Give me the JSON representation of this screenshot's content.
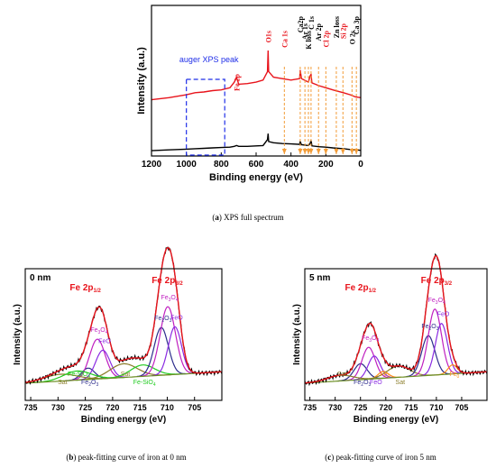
{
  "figure": {
    "caption_a": {
      "letter": "a",
      "text": " XPS full spectrum"
    },
    "caption_b": {
      "letter": "b",
      "text": " peak-fitting curve of iron at 0 nm"
    },
    "caption_c": {
      "letter": "c",
      "text": " peak-fitting curve of iron 5 nm"
    }
  },
  "chart_data": [
    {
      "type": "line",
      "xlabel": "Binding energy (eV)",
      "ylabel": "Intensity (a.u.)",
      "xlim": [
        1200,
        0
      ],
      "x_ticks": [
        1200,
        1000,
        800,
        600,
        400,
        200,
        0
      ],
      "box_label": "auger XPS peak",
      "series": [
        {
          "color": "#e8141c",
          "x": [
            1200,
            1100,
            1000,
            950,
            900,
            850,
            800,
            750,
            725,
            712,
            700,
            650,
            600,
            560,
            535,
            531,
            528,
            500,
            450,
            400,
            350,
            347,
            340,
            300,
            290,
            285,
            280,
            240,
            200,
            160,
            100,
            60,
            30,
            0
          ],
          "y": [
            0.3,
            0.33,
            0.37,
            0.4,
            0.41,
            0.43,
            0.44,
            0.47,
            0.55,
            0.62,
            0.52,
            0.53,
            0.55,
            0.58,
            0.7,
            1.0,
            0.7,
            0.62,
            0.6,
            0.58,
            0.6,
            0.72,
            0.6,
            0.55,
            0.64,
            0.66,
            0.54,
            0.5,
            0.47,
            0.44,
            0.4,
            0.37,
            0.34,
            0.33
          ]
        },
        {
          "color": "#000000",
          "x": [
            1200,
            1100,
            1000,
            950,
            900,
            850,
            800,
            750,
            725,
            712,
            700,
            650,
            600,
            560,
            535,
            531,
            528,
            500,
            450,
            400,
            350,
            347,
            340,
            300,
            290,
            285,
            280,
            240,
            200,
            160,
            100,
            60,
            30,
            0
          ],
          "y": [
            0.02,
            0.04,
            0.06,
            0.07,
            0.08,
            0.09,
            0.1,
            0.11,
            0.13,
            0.15,
            0.13,
            0.13,
            0.14,
            0.15,
            0.3,
            0.45,
            0.25,
            0.22,
            0.2,
            0.19,
            0.18,
            0.25,
            0.17,
            0.15,
            0.2,
            0.28,
            0.14,
            0.12,
            0.11,
            0.09,
            0.07,
            0.05,
            0.04,
            0.03
          ]
        }
      ],
      "peaks": [
        {
          "label": "Fe 2p",
          "x": 712,
          "color": "#e8141c"
        },
        {
          "label": "O1s",
          "x": 531,
          "color": "#e8141c"
        },
        {
          "label": "Ca 1s",
          "x": 438,
          "color": "#e8141c"
        },
        {
          "label": "Ca2p",
          "x": 347,
          "color": "#000000"
        },
        {
          "label": "Ar 1s",
          "x": 320,
          "color": "#000000"
        },
        {
          "label": "K loss",
          "x": 300,
          "color": "#000000"
        },
        {
          "label": "C 1s",
          "x": 285,
          "color": "#000000"
        },
        {
          "label": "Ar 2p",
          "x": 242,
          "color": "#000000"
        },
        {
          "label": "Cl 2p",
          "x": 200,
          "color": "#e8141c"
        },
        {
          "label": "Zn loss",
          "x": 140,
          "color": "#000000"
        },
        {
          "label": "Si 2p",
          "x": 102,
          "color": "#e8141c"
        },
        {
          "label": "O 2s",
          "x": 50,
          "color": "#000000"
        },
        {
          "label": "Ca 3p",
          "x": 25,
          "color": "#000000"
        }
      ]
    },
    {
      "type": "line",
      "panel_label": "0 nm",
      "xlabel": "Binding energy (eV)",
      "ylabel": "Intensity (a.u.)",
      "xlim": [
        736,
        700
      ],
      "x_ticks": [
        735,
        730,
        725,
        720,
        715,
        710,
        705
      ],
      "region_labels": [
        {
          "main": "Fe 2p",
          "sub": "1/2"
        },
        {
          "main": "Fe 2p",
          "sub": "3/2"
        }
      ],
      "components": [
        {
          "name": "Fe2O3",
          "color": "#2d2d8c",
          "center": 724.5,
          "width": 1.2,
          "height": 0.1,
          "label": [
            "Fe",
            "2",
            "O",
            "3"
          ]
        },
        {
          "name": "Fe3O4",
          "color": "#c020c0",
          "center": 722.8,
          "width": 1.4,
          "height": 0.35,
          "label": [
            "Fe",
            "3",
            "O",
            "4"
          ]
        },
        {
          "name": "FeO",
          "color": "#8a2be2",
          "center": 721.8,
          "width": 1.3,
          "height": 0.25,
          "label": [
            "FeO"
          ]
        },
        {
          "name": "Sat",
          "color": "#8b7d2a",
          "center": 718.0,
          "width": 2.5,
          "height": 0.12,
          "label": [
            "Sat"
          ]
        },
        {
          "name": "Fe-SiO",
          "color": "#22cc22",
          "center": 714.5,
          "width": 2.2,
          "height": 0.1,
          "label": [
            "Fe-SiO",
            "4"
          ]
        },
        {
          "name": "Fe2O3",
          "color": "#2d2d8c",
          "center": 711.1,
          "width": 1.3,
          "height": 0.42,
          "label": [
            "Fe",
            "2",
            "O",
            "3"
          ]
        },
        {
          "name": "Fe3O4",
          "color": "#c020c0",
          "center": 709.9,
          "width": 1.4,
          "height": 0.6,
          "label": [
            "Fe",
            "3",
            "O",
            "4"
          ]
        },
        {
          "name": "FeO",
          "color": "#8a2be2",
          "center": 708.6,
          "width": 1.2,
          "height": 0.42,
          "label": [
            "FeO"
          ]
        },
        {
          "name": "Sat",
          "color": "#8b7d2a",
          "center": 729.5,
          "width": 3.0,
          "height": 0.06,
          "label": [
            "Sat"
          ]
        },
        {
          "name": "Fe-SiO",
          "color": "#22cc22",
          "center": 726.5,
          "width": 2.5,
          "height": 0.08,
          "label": [
            "Fe-SiO",
            "4"
          ]
        }
      ]
    },
    {
      "type": "line",
      "panel_label": "5 nm",
      "xlabel": "Binding energy (eV)",
      "ylabel": "Intensity (a.u.)",
      "xlim": [
        736,
        700
      ],
      "x_ticks": [
        735,
        730,
        725,
        720,
        715,
        710,
        705
      ],
      "region_labels": [
        {
          "main": "Fe 2p",
          "sub": "1/2"
        },
        {
          "main": "Fe 2p",
          "sub": "3/2"
        }
      ],
      "components": [
        {
          "name": "Fe2O3",
          "color": "#2d2d8c",
          "center": 725.0,
          "width": 1.3,
          "height": 0.14,
          "label": [
            "Fe",
            "2",
            "O",
            "3"
          ]
        },
        {
          "name": "Fe3O4",
          "color": "#c020c0",
          "center": 723.4,
          "width": 1.3,
          "height": 0.28,
          "label": [
            "Fe",
            "3",
            "O",
            "4"
          ]
        },
        {
          "name": "FeO",
          "color": "#8a2be2",
          "center": 722.3,
          "width": 1.2,
          "height": 0.2,
          "label": [
            "FeO"
          ]
        },
        {
          "name": "Fe0",
          "color": "#ff8c1a",
          "center": 720.5,
          "width": 1.0,
          "height": 0.06,
          "label": [
            "Fe",
            "0"
          ]
        },
        {
          "name": "Sat",
          "color": "#8b7d2a",
          "center": 717.5,
          "width": 2.2,
          "height": 0.1,
          "label": [
            "Sat"
          ]
        },
        {
          "name": "Sat",
          "color": "#8b7d2a",
          "center": 729.0,
          "width": 2.5,
          "height": 0.05,
          "label": [
            "Sat"
          ]
        },
        {
          "name": "Fe2O3",
          "color": "#2d2d8c",
          "center": 711.6,
          "width": 1.3,
          "height": 0.35,
          "label": [
            "Fe",
            "2",
            "O",
            "3"
          ]
        },
        {
          "name": "Fe3O4",
          "color": "#c020c0",
          "center": 710.3,
          "width": 1.3,
          "height": 0.58,
          "label": [
            "Fe",
            "3",
            "O",
            "4"
          ]
        },
        {
          "name": "FeO",
          "color": "#8a2be2",
          "center": 709.0,
          "width": 1.2,
          "height": 0.45,
          "label": [
            "FeO"
          ]
        },
        {
          "name": "Fe0",
          "color": "#ff8c1a",
          "center": 706.8,
          "width": 0.9,
          "height": 0.08,
          "label": [
            "Fe",
            "0"
          ]
        }
      ]
    }
  ]
}
